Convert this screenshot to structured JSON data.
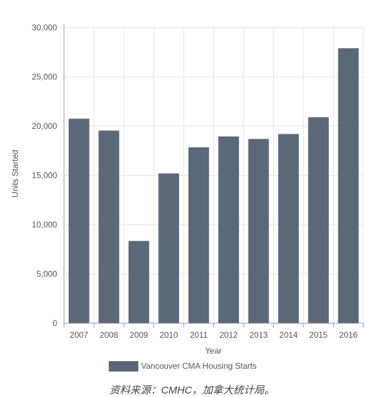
{
  "chart_data": {
    "type": "bar",
    "categories": [
      "2007",
      "2008",
      "2009",
      "2010",
      "2011",
      "2012",
      "2013",
      "2014",
      "2015",
      "2016"
    ],
    "series": [
      {
        "name": "Vancouver CMA Housing Starts",
        "color": "#5b6878",
        "values": [
          20750,
          19550,
          8350,
          15200,
          17850,
          18950,
          18700,
          19200,
          20900,
          27900
        ]
      }
    ],
    "xlabel": "Year",
    "ylabel": "Units Started",
    "ylim": [
      0,
      30000
    ],
    "yticks": [
      0,
      5000,
      10000,
      15000,
      20000,
      25000,
      30000
    ],
    "ytick_labels": [
      "0",
      "5,000",
      "10,000",
      "15,000",
      "20,000",
      "25,000",
      "30,000"
    ],
    "grid": true,
    "legend_position": "bottom"
  },
  "source_note": "资料来源：CMHC，加拿大统计局。"
}
